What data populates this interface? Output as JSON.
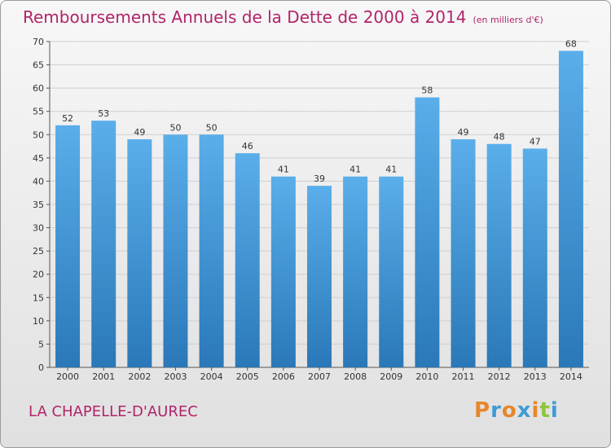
{
  "header": {
    "title": "Remboursements Annuels de la Dette de 2000 à 2014",
    "unit": "(en milliers d'€)"
  },
  "footer": {
    "subject": "LA CHAPELLE-D'AUREC",
    "logo": "Proxiti"
  },
  "colors": {
    "title": "#b0256a",
    "bar_top": "#5aaeea",
    "bar_bottom": "#2a78b8",
    "grid": "#cfcfcf",
    "logo": [
      "#e6872c",
      "#3f9bd6",
      "#e6872c",
      "#3f9bd6",
      "#e6872c",
      "#8fc43f",
      "#3f9bd6"
    ]
  },
  "chart_data": {
    "type": "bar",
    "title": "Remboursements Annuels de la Dette de 2000 à 2014",
    "subtitle": "(en milliers d'€)",
    "categories": [
      "2000",
      "2001",
      "2002",
      "2003",
      "2004",
      "2005",
      "2006",
      "2007",
      "2008",
      "2009",
      "2010",
      "2011",
      "2012",
      "2013",
      "2014"
    ],
    "values": [
      52,
      53,
      49,
      50,
      50,
      46,
      41,
      39,
      41,
      41,
      58,
      49,
      48,
      47,
      68
    ],
    "ylim": [
      0,
      70
    ],
    "yticks": [
      0,
      5,
      10,
      15,
      20,
      25,
      30,
      35,
      40,
      45,
      50,
      55,
      60,
      65,
      70
    ],
    "grid": true,
    "legend": "none"
  }
}
